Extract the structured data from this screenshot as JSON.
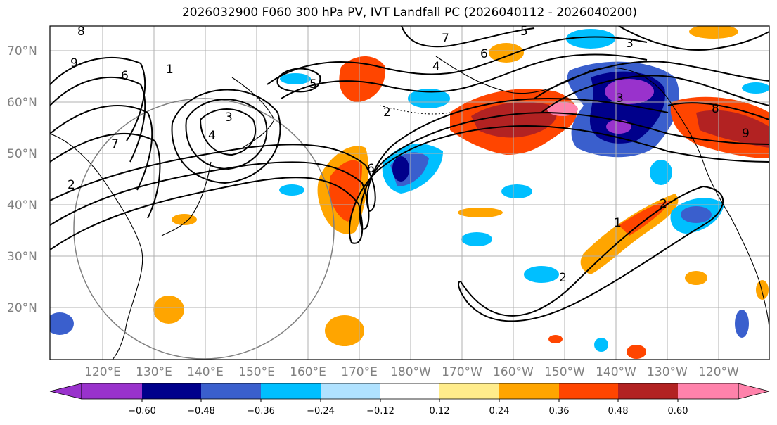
{
  "title": "2026032900 F060 300 hPa PV, IVT Landfall PC (2026040112 - 2026040200)",
  "map": {
    "lat_labels": [
      "70°N",
      "60°N",
      "50°N",
      "40°N",
      "30°N",
      "20°N"
    ],
    "lon_labels": [
      "120°E",
      "130°E",
      "140°E",
      "150°E",
      "160°E",
      "170°E",
      "180°W",
      "170°W",
      "160°W",
      "150°W",
      "140°W",
      "130°W",
      "120°W"
    ],
    "contour_labels": [
      "9",
      "8",
      "6",
      "7",
      "5",
      "4",
      "3",
      "2",
      "1",
      "2",
      "6",
      "3",
      "4",
      "5",
      "6",
      "7",
      "8",
      "9",
      "3",
      "2",
      "1",
      "2"
    ]
  },
  "colorbar": {
    "tick_labels": [
      "−0.60",
      "−0.48",
      "−0.36",
      "−0.24",
      "−0.12",
      "0.12",
      "0.24",
      "0.36",
      "0.48",
      "0.60"
    ],
    "colors": [
      "#9932CC",
      "#00008B",
      "#3A5FCD",
      "#00BFFF",
      "#B0E2FF",
      "#FFFFFF",
      "#FFEC8B",
      "#FFA500",
      "#FF4500",
      "#B22222",
      "#FF82AB"
    ]
  }
}
